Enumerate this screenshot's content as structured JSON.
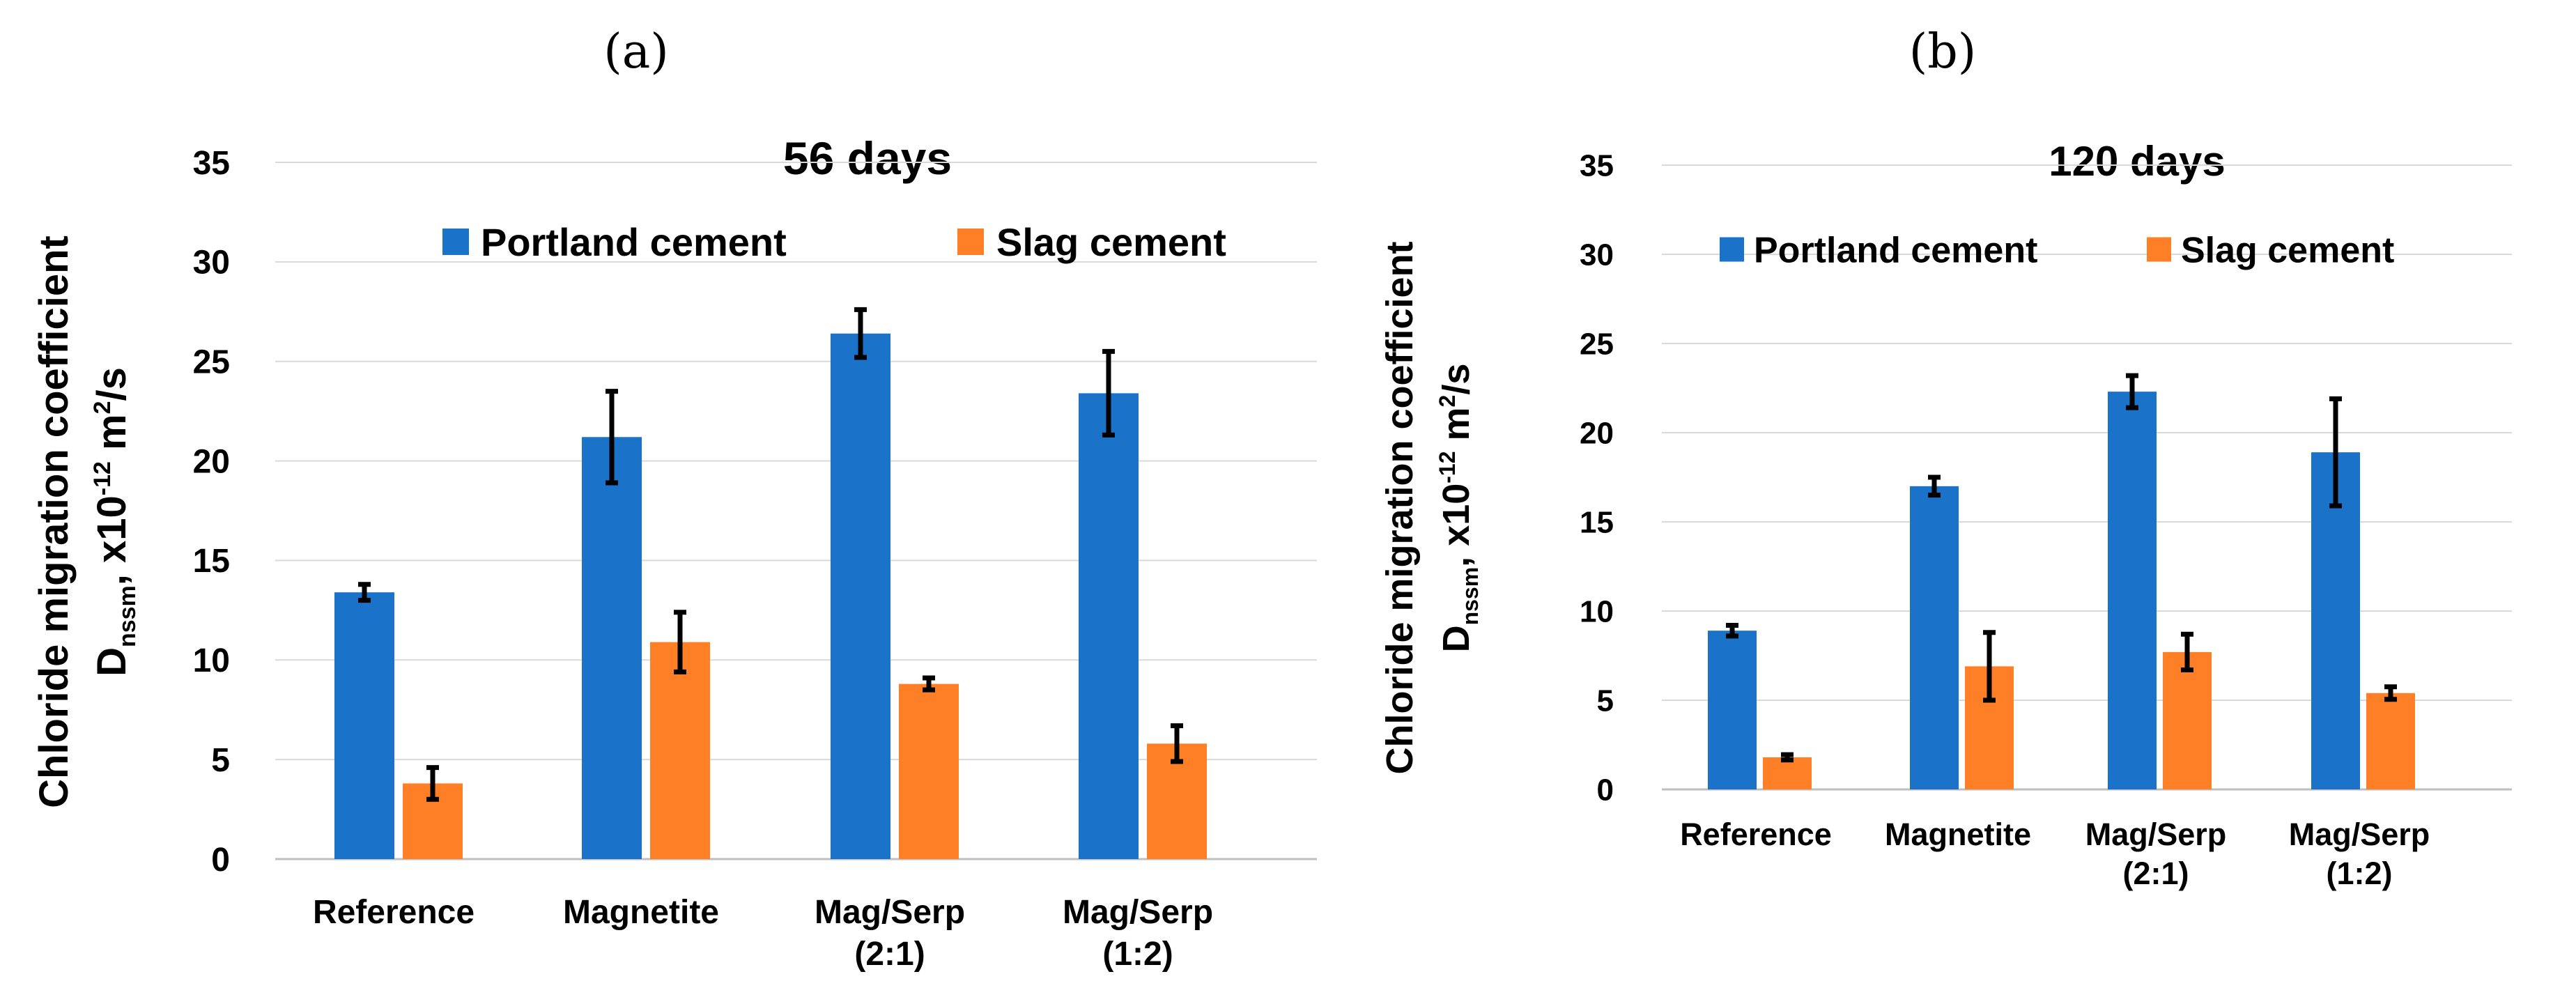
{
  "chart_data": [
    {
      "type": "bar",
      "panel_label": "(a)",
      "title": "56 days",
      "ylabel_line1": "Chloride migration coefficient",
      "ylabel_line2_main": "D",
      "ylabel_line2_sub": "nssm",
      "ylabel_line2_mid": ", x10",
      "ylabel_line2_exp1": "-12",
      "ylabel_line2_unit": " m",
      "ylabel_line2_exp2": "2",
      "ylabel_line2_tail": "/s",
      "ylim": [
        0,
        35
      ],
      "yticks": [
        0,
        5,
        10,
        15,
        20,
        25,
        30,
        35
      ],
      "categories": [
        [
          "Reference"
        ],
        [
          "Magnetite"
        ],
        [
          "Mag/Serp",
          "(2:1)"
        ],
        [
          "Mag/Serp",
          "(1:2)"
        ]
      ],
      "legend": "top",
      "series": [
        {
          "name": "Portland cement",
          "color": "#1b72c9",
          "values": [
            13.4,
            21.2,
            26.4,
            23.4
          ],
          "errors": [
            0.4,
            2.3,
            1.2,
            2.1
          ]
        },
        {
          "name": "Slag cement",
          "color": "#ff7f27",
          "values": [
            3.8,
            10.9,
            8.8,
            5.8
          ],
          "errors": [
            0.8,
            1.5,
            0.3,
            0.9
          ]
        }
      ]
    },
    {
      "type": "bar",
      "panel_label": "(b)",
      "title": "120 days",
      "ylabel_line1": "Chloride migration coefficient",
      "ylabel_line2_main": "D",
      "ylabel_line2_sub": "nssm",
      "ylabel_line2_mid": ", x10",
      "ylabel_line2_exp1": "-12",
      "ylabel_line2_unit": " m",
      "ylabel_line2_exp2": "2",
      "ylabel_line2_tail": "/s",
      "ylim": [
        0,
        35
      ],
      "yticks": [
        0,
        5,
        10,
        15,
        20,
        25,
        30,
        35
      ],
      "categories": [
        [
          "Reference"
        ],
        [
          "Magnetite"
        ],
        [
          "Mag/Serp",
          "(2:1)"
        ],
        [
          "Mag/Serp",
          "(1:2)"
        ]
      ],
      "legend": "top",
      "series": [
        {
          "name": "Portland cement",
          "color": "#1b72c9",
          "values": [
            8.9,
            17.0,
            22.3,
            18.9
          ],
          "errors": [
            0.3,
            0.5,
            0.9,
            3.0
          ]
        },
        {
          "name": "Slag cement",
          "color": "#ff7f27",
          "values": [
            1.8,
            6.9,
            7.7,
            5.4
          ],
          "errors": [
            0.15,
            1.9,
            1.0,
            0.35
          ]
        }
      ]
    }
  ]
}
